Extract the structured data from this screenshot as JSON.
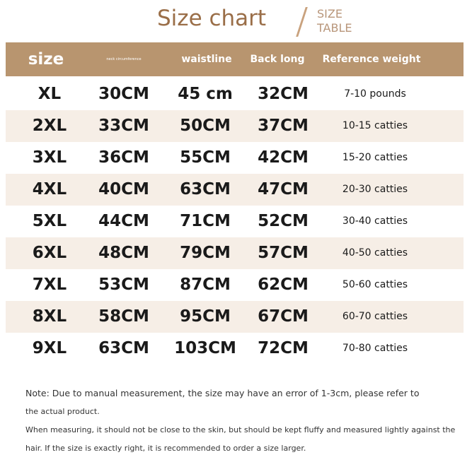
{
  "title": "Size chart",
  "subtitle_line1": "SIZE",
  "subtitle_line2": "TABLE",
  "columns": [
    "size",
    "neck circumference",
    "waistline",
    "Back long",
    "Reference weight"
  ],
  "rows": [
    [
      "XL",
      "30CM",
      "45 cm",
      "32CM",
      "7-10 pounds"
    ],
    [
      "2XL",
      "33CM",
      "50CM",
      "37CM",
      "10-15 catties"
    ],
    [
      "3XL",
      "36CM",
      "55CM",
      "42CM",
      "15-20 catties"
    ],
    [
      "4XL",
      "40CM",
      "63CM",
      "47CM",
      "20-30 catties"
    ],
    [
      "5XL",
      "44CM",
      "71CM",
      "52CM",
      "30-40 catties"
    ],
    [
      "6XL",
      "48CM",
      "79CM",
      "57CM",
      "40-50 catties"
    ],
    [
      "7XL",
      "53CM",
      "87CM",
      "62CM",
      "50-60 catties"
    ],
    [
      "8XL",
      "58CM",
      "95CM",
      "67CM",
      "60-70 catties"
    ],
    [
      "9XL",
      "63CM",
      "103CM",
      "72CM",
      "70-80 catties"
    ]
  ],
  "notes": [
    "Note: Due to manual measurement, the size may have an error of 1-3cm, please refer to",
    "the actual product.",
    "When measuring, it should not be close to the skin, but should be kept fluffy and measured lightly against the",
    "hair. If the size is exactly right, it is recommended to order a size larger."
  ],
  "colors": {
    "header": "#b8956f",
    "stripe": "#f6eee6",
    "title": "#9a6e48"
  }
}
